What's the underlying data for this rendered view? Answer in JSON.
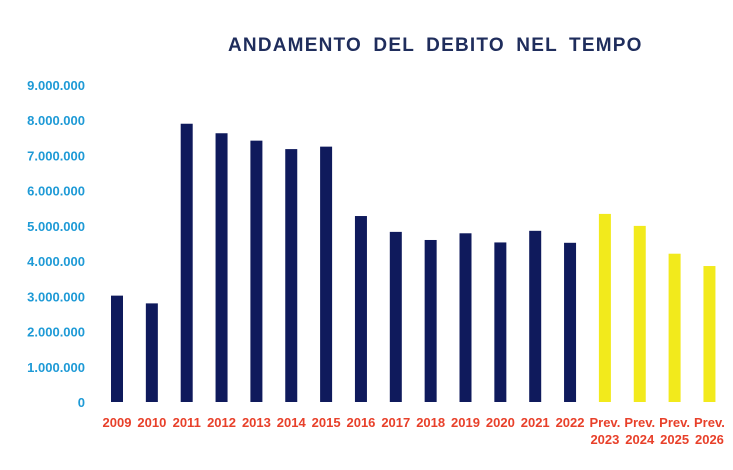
{
  "chart_data": {
    "type": "bar",
    "title": "ANDAMENTO DEL DEBITO NEL TEMPO",
    "xlabel": "",
    "ylabel": "",
    "ylim": [
      0,
      9000000
    ],
    "yticks": [
      "0",
      "1.000.000",
      "2.000.000",
      "3.000.000",
      "4.000.000",
      "5.000.000",
      "6.000.000",
      "7.000.000",
      "8.000.000",
      "9.000.000"
    ],
    "grid": false,
    "legend": "none",
    "categories": [
      [
        "2009"
      ],
      [
        "2010"
      ],
      [
        "2011"
      ],
      [
        "2012"
      ],
      [
        "2013"
      ],
      [
        "2014"
      ],
      [
        "2015"
      ],
      [
        "2016"
      ],
      [
        "2017"
      ],
      [
        "2018"
      ],
      [
        "2019"
      ],
      [
        "2020"
      ],
      [
        "2021"
      ],
      [
        "2022"
      ],
      [
        "Prev.",
        "2023"
      ],
      [
        "Prev.",
        "2024"
      ],
      [
        "Prev.",
        "2025"
      ],
      [
        "Prev.",
        "2026"
      ]
    ],
    "values": [
      3020000,
      2800000,
      7900000,
      7630000,
      7420000,
      7180000,
      7250000,
      5280000,
      4830000,
      4600000,
      4790000,
      4530000,
      4860000,
      4520000,
      5340000,
      5000000,
      4210000,
      3860000
    ],
    "colors": {
      "actual": "#0f1a5c",
      "forecast": "#f2ea1c",
      "y_tick_text": "#1e9ad6",
      "x_tick_text": "#e8402a",
      "title": "#1f2d5c"
    },
    "forecast_start_index": 14
  }
}
